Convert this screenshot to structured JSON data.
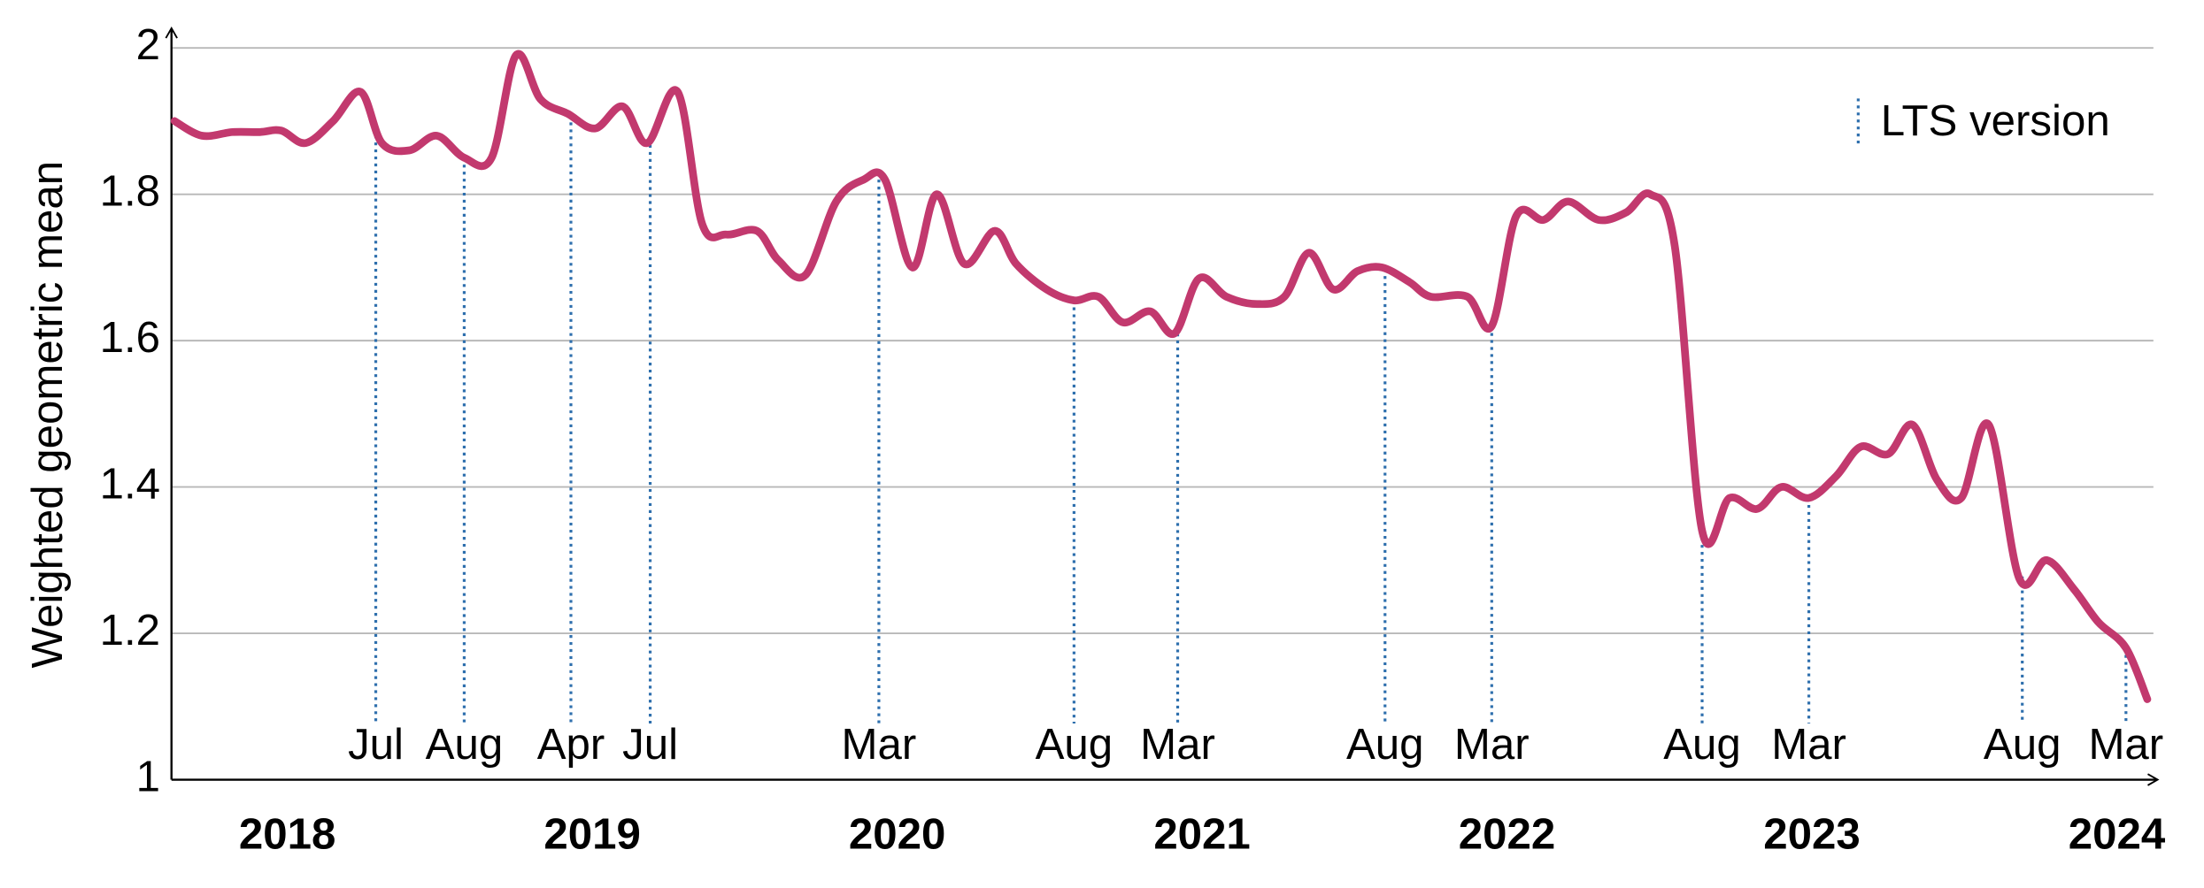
{
  "chart_data": {
    "type": "line",
    "y_label": "Weighted geometric mean",
    "x": [
      2017.63,
      2017.72,
      2017.82,
      2017.91,
      2017.98,
      2018.06,
      2018.15,
      2018.24,
      2018.31,
      2018.4,
      2018.49,
      2018.58,
      2018.67,
      2018.75,
      2018.83,
      2018.92,
      2019.01,
      2019.1,
      2019.18,
      2019.28,
      2019.36,
      2019.44,
      2019.54,
      2019.61,
      2019.7,
      2019.8,
      2019.89,
      2019.96,
      2020.05,
      2020.13,
      2020.22,
      2020.32,
      2020.39,
      2020.49,
      2020.58,
      2020.66,
      2020.74,
      2020.83,
      2020.91,
      2020.99,
      2021.08,
      2021.18,
      2021.27,
      2021.35,
      2021.43,
      2021.51,
      2021.59,
      2021.68,
      2021.75,
      2021.87,
      2021.95,
      2022.03,
      2022.12,
      2022.2,
      2022.3,
      2022.39,
      2022.47,
      2022.55,
      2022.64,
      2022.73,
      2022.82,
      2022.9,
      2022.99,
      2023.08,
      2023.16,
      2023.25,
      2023.33,
      2023.41,
      2023.49,
      2023.58,
      2023.68,
      2023.77,
      2023.86,
      2023.94,
      2024.03,
      2024.1
    ],
    "series": [
      {
        "color": "#c2396e",
        "values": [
          1.9,
          1.88,
          1.885,
          1.885,
          1.887,
          1.87,
          1.9,
          1.94,
          1.87,
          1.86,
          1.88,
          1.85,
          1.85,
          1.99,
          1.93,
          1.91,
          1.89,
          1.92,
          1.87,
          1.94,
          1.76,
          1.745,
          1.75,
          1.71,
          1.69,
          1.79,
          1.82,
          1.82,
          1.7,
          1.8,
          1.705,
          1.75,
          1.705,
          1.67,
          1.655,
          1.66,
          1.625,
          1.64,
          1.61,
          1.685,
          1.66,
          1.65,
          1.66,
          1.72,
          1.67,
          1.695,
          1.7,
          1.68,
          1.66,
          1.66,
          1.62,
          1.77,
          1.765,
          1.79,
          1.765,
          1.775,
          1.8,
          1.73,
          1.34,
          1.385,
          1.37,
          1.4,
          1.385,
          1.415,
          1.455,
          1.445,
          1.485,
          1.41,
          1.385,
          1.485,
          1.275,
          1.3,
          1.26,
          1.215,
          1.18,
          1.11
        ]
      }
    ],
    "lts_markers": [
      {
        "x": 2018.29,
        "label": "Jul"
      },
      {
        "x": 2018.58,
        "label": "Aug"
      },
      {
        "x": 2018.93,
        "label": "Apr"
      },
      {
        "x": 2019.19,
        "label": "Jul"
      },
      {
        "x": 2019.94,
        "label": "Mar"
      },
      {
        "x": 2020.58,
        "label": "Aug"
      },
      {
        "x": 2020.92,
        "label": "Mar"
      },
      {
        "x": 2021.6,
        "label": "Aug"
      },
      {
        "x": 2021.95,
        "label": "Mar"
      },
      {
        "x": 2022.64,
        "label": "Aug"
      },
      {
        "x": 2022.99,
        "label": "Mar"
      },
      {
        "x": 2023.69,
        "label": "Aug"
      },
      {
        "x": 2024.03,
        "label": "Mar"
      }
    ],
    "marker_color": "#2e6fad",
    "legend": "LTS version",
    "xlim": [
      2017.62,
      2024.12
    ],
    "xticks": [
      2018,
      2019,
      2020,
      2021,
      2022,
      2023,
      2024
    ],
    "ylim": [
      1,
      2
    ],
    "yticks": [
      1,
      1.2,
      1.4,
      1.6,
      1.8,
      2
    ],
    "grid": true
  }
}
